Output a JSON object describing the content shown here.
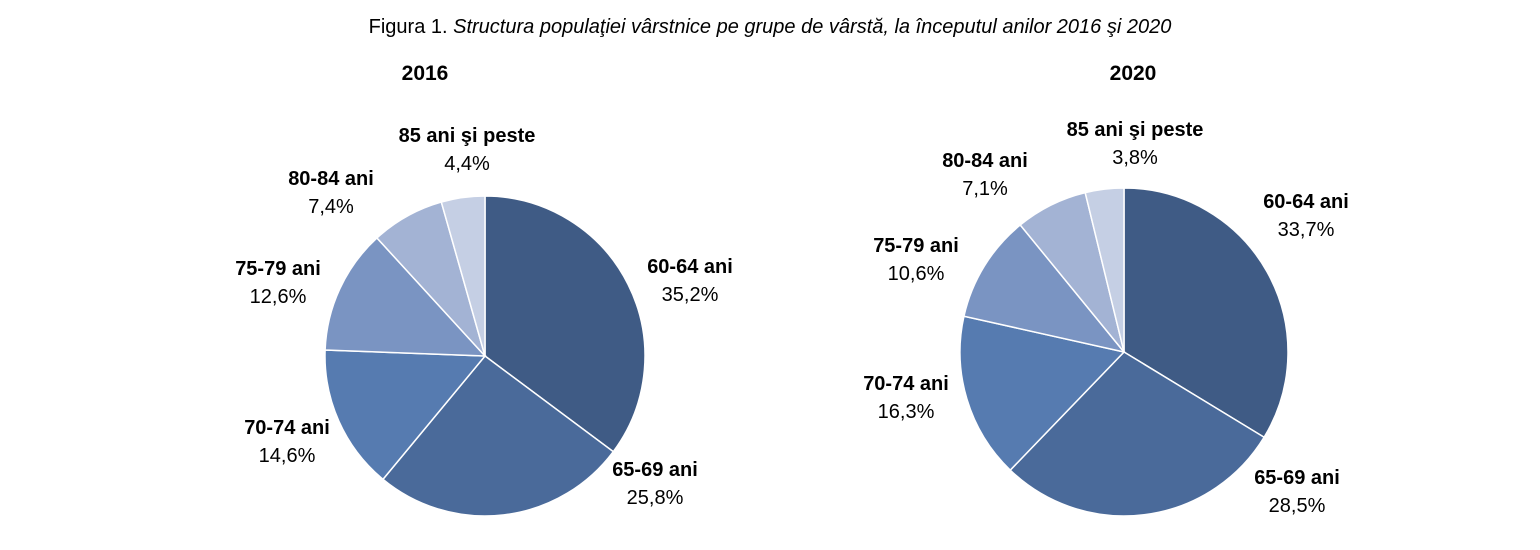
{
  "figure": {
    "prefix": "Figura 1. ",
    "caption": "Structura populaţiei vârstnice pe grupe de vârstă,  la începutul anilor 2016 şi 2020"
  },
  "chart_data": [
    {
      "type": "pie",
      "title": "2016",
      "slices": [
        {
          "label": "60-64 ani",
          "value": 35.2,
          "display": "35,2%",
          "color": "#3f5b85"
        },
        {
          "label": "65-69 ani",
          "value": 25.8,
          "display": "25,8%",
          "color": "#4a6a9a"
        },
        {
          "label": "70-74 ani",
          "value": 14.6,
          "display": "14,6%",
          "color": "#567bb0"
        },
        {
          "label": "75-79 ani",
          "value": 12.6,
          "display": "12,6%",
          "color": "#7a94c2"
        },
        {
          "label": "80-84 ani",
          "value": 7.4,
          "display": "7,4%",
          "color": "#a3b3d4"
        },
        {
          "label": "85 ani şi peste",
          "value": 4.4,
          "display": "4,4%",
          "color": "#c5cfe4"
        }
      ]
    },
    {
      "type": "pie",
      "title": "2020",
      "slices": [
        {
          "label": "60-64 ani",
          "value": 33.7,
          "display": "33,7%",
          "color": "#3f5b85"
        },
        {
          "label": "65-69 ani",
          "value": 28.5,
          "display": "28,5%",
          "color": "#4a6a9a"
        },
        {
          "label": "70-74 ani",
          "value": 16.3,
          "display": "16,3%",
          "color": "#567bb0"
        },
        {
          "label": "75-79 ani",
          "value": 10.6,
          "display": "10,6%",
          "color": "#7a94c2"
        },
        {
          "label": "80-84 ani",
          "value": 7.1,
          "display": "7,1%",
          "color": "#a3b3d4"
        },
        {
          "label": "85 ani şi peste",
          "value": 3.8,
          "display": "3,8%",
          "color": "#c5cfe4"
        }
      ]
    }
  ]
}
